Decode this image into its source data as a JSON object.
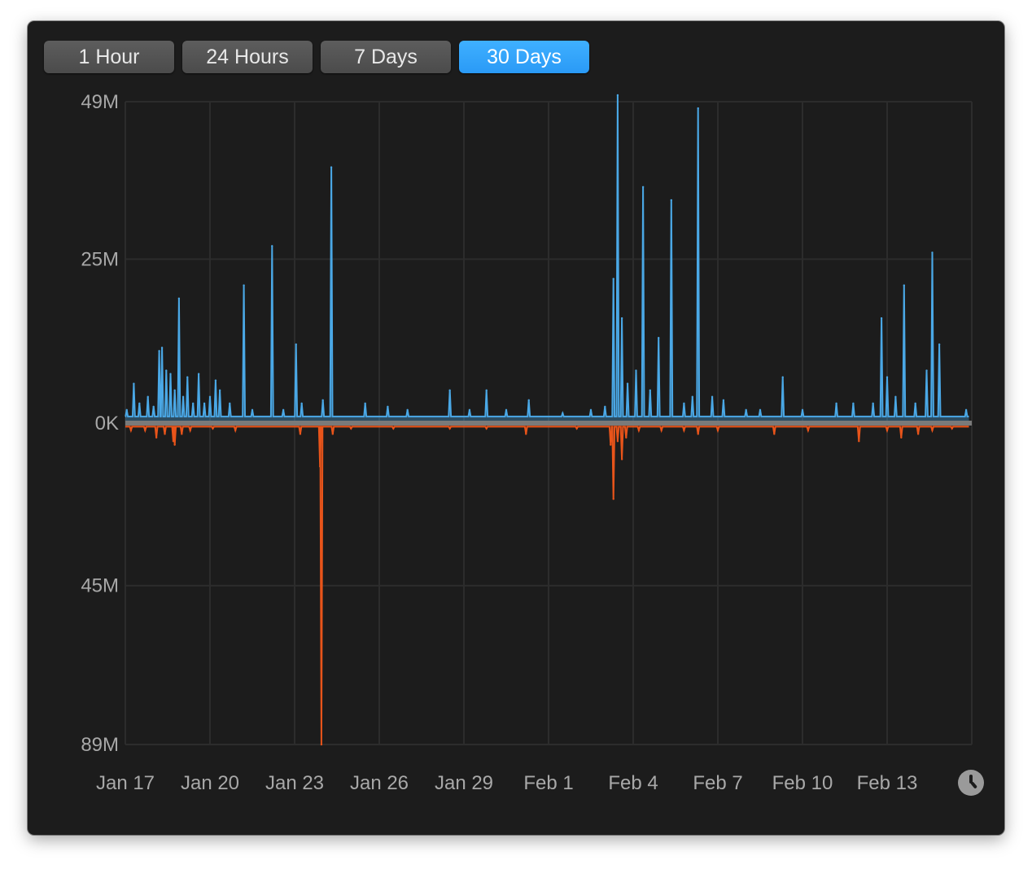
{
  "timeframe_buttons": [
    {
      "label": "1 Hour",
      "active": false
    },
    {
      "label": "24 Hours",
      "active": false
    },
    {
      "label": "7 Days",
      "active": false
    },
    {
      "label": "30 Days",
      "active": true
    }
  ],
  "colors": {
    "upload": "#4aa8e6",
    "download": "#e8541a",
    "grid": "#2c2c2c",
    "axis_text": "#a8a8a8",
    "active_button": "#35a6fb"
  },
  "icons": {
    "time_range": "clock-icon"
  },
  "chart_data": {
    "type": "area",
    "title": "",
    "xlabel": "",
    "ylabel": "",
    "x_unit": "days since Jan 17",
    "x_ticks": [
      {
        "x": 0,
        "label": "Jan 17"
      },
      {
        "x": 3,
        "label": "Jan 20"
      },
      {
        "x": 6,
        "label": "Jan 23"
      },
      {
        "x": 9,
        "label": "Jan 26"
      },
      {
        "x": 12,
        "label": "Jan 29"
      },
      {
        "x": 15,
        "label": "Feb 1"
      },
      {
        "x": 18,
        "label": "Feb 4"
      },
      {
        "x": 21,
        "label": "Feb 7"
      },
      {
        "x": 24,
        "label": "Feb 10"
      },
      {
        "x": 27,
        "label": "Feb 13"
      }
    ],
    "y_ticks": [
      {
        "value": 49,
        "label": "49M"
      },
      {
        "value": 25,
        "label": "25M"
      },
      {
        "value": 0,
        "label": "0K"
      },
      {
        "value": -45,
        "label": "45M"
      },
      {
        "value": -89,
        "label": "89M"
      }
    ],
    "xlim": [
      0,
      30
    ],
    "ylim": [
      -89,
      49
    ],
    "grid": true,
    "series": [
      {
        "name": "",
        "color": "#4aa8e6",
        "baseline": 1,
        "points": [
          [
            0.05,
            2
          ],
          [
            0.3,
            6
          ],
          [
            0.5,
            3
          ],
          [
            0.8,
            4
          ],
          [
            1.0,
            2.5
          ],
          [
            1.2,
            11
          ],
          [
            1.3,
            11.5
          ],
          [
            1.45,
            8
          ],
          [
            1.6,
            7.5
          ],
          [
            1.75,
            5
          ],
          [
            1.9,
            19
          ],
          [
            2.05,
            4
          ],
          [
            2.2,
            7
          ],
          [
            2.4,
            3
          ],
          [
            2.6,
            7.5
          ],
          [
            2.8,
            3
          ],
          [
            3.0,
            4
          ],
          [
            3.2,
            6.5
          ],
          [
            3.35,
            5
          ],
          [
            3.7,
            3
          ],
          [
            4.2,
            21
          ],
          [
            4.5,
            2
          ],
          [
            5.2,
            27
          ],
          [
            5.6,
            2
          ],
          [
            6.05,
            12
          ],
          [
            6.25,
            3
          ],
          [
            7.0,
            3.5
          ],
          [
            7.3,
            39
          ],
          [
            8.5,
            3
          ],
          [
            9.3,
            2.5
          ],
          [
            10.0,
            2
          ],
          [
            11.5,
            5
          ],
          [
            12.2,
            2
          ],
          [
            12.8,
            5
          ],
          [
            13.5,
            2
          ],
          [
            14.3,
            3.5
          ],
          [
            15.5,
            1.5
          ],
          [
            16.5,
            2
          ],
          [
            17.0,
            2.5
          ],
          [
            17.3,
            22
          ],
          [
            17.45,
            50
          ],
          [
            17.6,
            16
          ],
          [
            17.8,
            6
          ],
          [
            18.1,
            8
          ],
          [
            18.35,
            36
          ],
          [
            18.6,
            5
          ],
          [
            18.9,
            13
          ],
          [
            19.35,
            34
          ],
          [
            19.8,
            3
          ],
          [
            20.1,
            4
          ],
          [
            20.3,
            48
          ],
          [
            20.8,
            4
          ],
          [
            21.2,
            3.5
          ],
          [
            22.0,
            2
          ],
          [
            22.5,
            2
          ],
          [
            23.3,
            7
          ],
          [
            24.0,
            2
          ],
          [
            25.2,
            3
          ],
          [
            25.8,
            3
          ],
          [
            26.5,
            3
          ],
          [
            26.8,
            16
          ],
          [
            27.0,
            7
          ],
          [
            27.3,
            4
          ],
          [
            27.6,
            21
          ],
          [
            28.0,
            3
          ],
          [
            28.4,
            8
          ],
          [
            28.6,
            26
          ],
          [
            28.85,
            12
          ],
          [
            29.8,
            2
          ]
        ]
      },
      {
        "name": "",
        "color": "#e8541a",
        "baseline": -1,
        "points": [
          [
            0.2,
            -2
          ],
          [
            0.7,
            -2
          ],
          [
            1.1,
            -4
          ],
          [
            1.4,
            -3
          ],
          [
            1.7,
            -5
          ],
          [
            1.75,
            -6
          ],
          [
            2.0,
            -3
          ],
          [
            2.3,
            -2
          ],
          [
            3.1,
            -1.5
          ],
          [
            3.9,
            -2
          ],
          [
            6.2,
            -3
          ],
          [
            6.9,
            -12
          ],
          [
            6.95,
            -89
          ],
          [
            7.35,
            -3
          ],
          [
            8.0,
            -1.5
          ],
          [
            9.5,
            -1.5
          ],
          [
            11.5,
            -1.5
          ],
          [
            12.8,
            -1.5
          ],
          [
            14.2,
            -3
          ],
          [
            16.0,
            -1.5
          ],
          [
            17.2,
            -6
          ],
          [
            17.3,
            -21
          ],
          [
            17.45,
            -5
          ],
          [
            17.6,
            -10
          ],
          [
            17.75,
            -4
          ],
          [
            18.2,
            -2
          ],
          [
            19.0,
            -2
          ],
          [
            19.8,
            -2
          ],
          [
            20.3,
            -3
          ],
          [
            21.0,
            -2
          ],
          [
            23.0,
            -3
          ],
          [
            24.2,
            -2
          ],
          [
            26.0,
            -5
          ],
          [
            27.0,
            -2
          ],
          [
            27.5,
            -4
          ],
          [
            28.1,
            -3
          ],
          [
            28.6,
            -2
          ],
          [
            29.3,
            -1.5
          ]
        ]
      }
    ]
  }
}
